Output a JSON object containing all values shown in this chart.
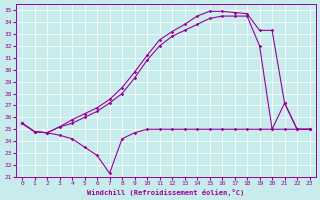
{
  "xlabel": "Windchill (Refroidissement éolien,°C)",
  "bg_color": "#c8ecec",
  "line_color": "#990099",
  "grid_color": "#ffffff",
  "ylim": [
    21,
    35.5
  ],
  "xlim": [
    -0.5,
    23.5
  ],
  "line1_y": [
    25.5,
    24.8,
    24.7,
    24.5,
    24.2,
    23.5,
    22.8,
    21.3,
    24.2,
    24.7,
    25.0,
    25.0,
    25.0,
    25.0,
    25.0,
    25.0,
    25.0,
    25.0,
    25.0,
    25.0,
    25.0,
    25.0,
    25.0,
    25.0
  ],
  "line2_y": [
    25.5,
    24.8,
    24.7,
    25.2,
    25.8,
    26.3,
    26.8,
    27.5,
    28.5,
    29.8,
    31.2,
    32.5,
    33.2,
    33.8,
    34.5,
    34.9,
    34.9,
    34.8,
    34.7,
    33.3,
    33.3,
    27.2,
    25.0,
    25.0
  ],
  "line3_y": [
    25.5,
    24.8,
    24.7,
    25.2,
    25.5,
    26.0,
    26.5,
    27.2,
    28.0,
    29.3,
    30.8,
    32.0,
    32.8,
    33.3,
    33.8,
    34.3,
    34.5,
    34.5,
    34.5,
    32.0,
    25.0,
    27.2,
    25.0,
    25.0
  ],
  "x_ticks": [
    0,
    1,
    2,
    3,
    4,
    5,
    6,
    7,
    8,
    9,
    10,
    11,
    12,
    13,
    14,
    15,
    16,
    17,
    18,
    19,
    20,
    21,
    22,
    23
  ],
  "y_ticks": [
    21,
    22,
    23,
    24,
    25,
    26,
    27,
    28,
    29,
    30,
    31,
    32,
    33,
    34,
    35
  ]
}
